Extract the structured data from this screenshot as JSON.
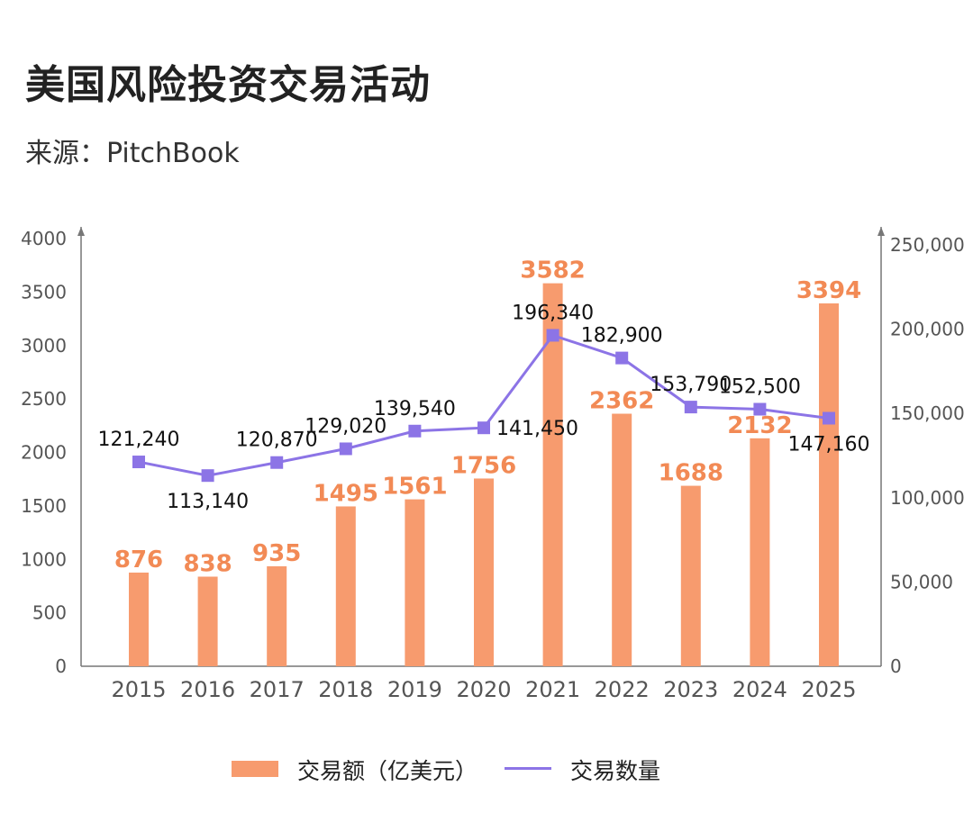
{
  "title": "美国风险投资交易活动",
  "source": "来源：PitchBook",
  "colors": {
    "bar": "#F79B6E",
    "bar_label": "#F28A55",
    "line": "#8C74E6",
    "axis": "#777777"
  },
  "chart_data": {
    "type": "bar+line",
    "categories": [
      "2015",
      "2016",
      "2017",
      "2018",
      "2019",
      "2020",
      "2021",
      "2022",
      "2023",
      "2024",
      "2025"
    ],
    "series": [
      {
        "name": "交易额（亿美元）",
        "type": "bar",
        "axis": "left",
        "values": [
          876,
          838,
          935,
          1495,
          1561,
          1756,
          3582,
          2362,
          1688,
          2132,
          3394
        ],
        "labels": [
          "876",
          "838",
          "935",
          "1495",
          "1561",
          "1756",
          "3582",
          "2362",
          "1688",
          "2132",
          "3394"
        ]
      },
      {
        "name": "交易数量",
        "type": "line",
        "axis": "right",
        "values": [
          121240,
          113140,
          120870,
          129020,
          139540,
          141450,
          196340,
          182900,
          153790,
          152500,
          147160
        ],
        "labels": [
          "121,240",
          "113,140",
          "120,870",
          "129,020",
          "139,540",
          "141,450",
          "196,340",
          "182,900",
          "153,790",
          "152,500",
          "147,160"
        ],
        "label_positions": [
          "above",
          "below",
          "above",
          "above",
          "above",
          "right",
          "above",
          "above",
          "above",
          "above",
          "below"
        ]
      }
    ],
    "left_axis": {
      "range": [
        0,
        4000
      ],
      "ticks": [
        "0",
        "500",
        "1000",
        "1500",
        "2000",
        "2500",
        "3000",
        "3500",
        "4000"
      ],
      "tick_values": [
        0,
        500,
        1000,
        1500,
        2000,
        2500,
        3000,
        3500,
        4000
      ]
    },
    "right_axis": {
      "range": [
        0,
        250000
      ],
      "ticks": [
        "0",
        "50,000",
        "100,000",
        "150,000",
        "200,000",
        "250,000"
      ],
      "tick_values": [
        0,
        50000,
        100000,
        150000,
        200000,
        250000
      ]
    },
    "grid": false,
    "legend_position": "bottom"
  }
}
